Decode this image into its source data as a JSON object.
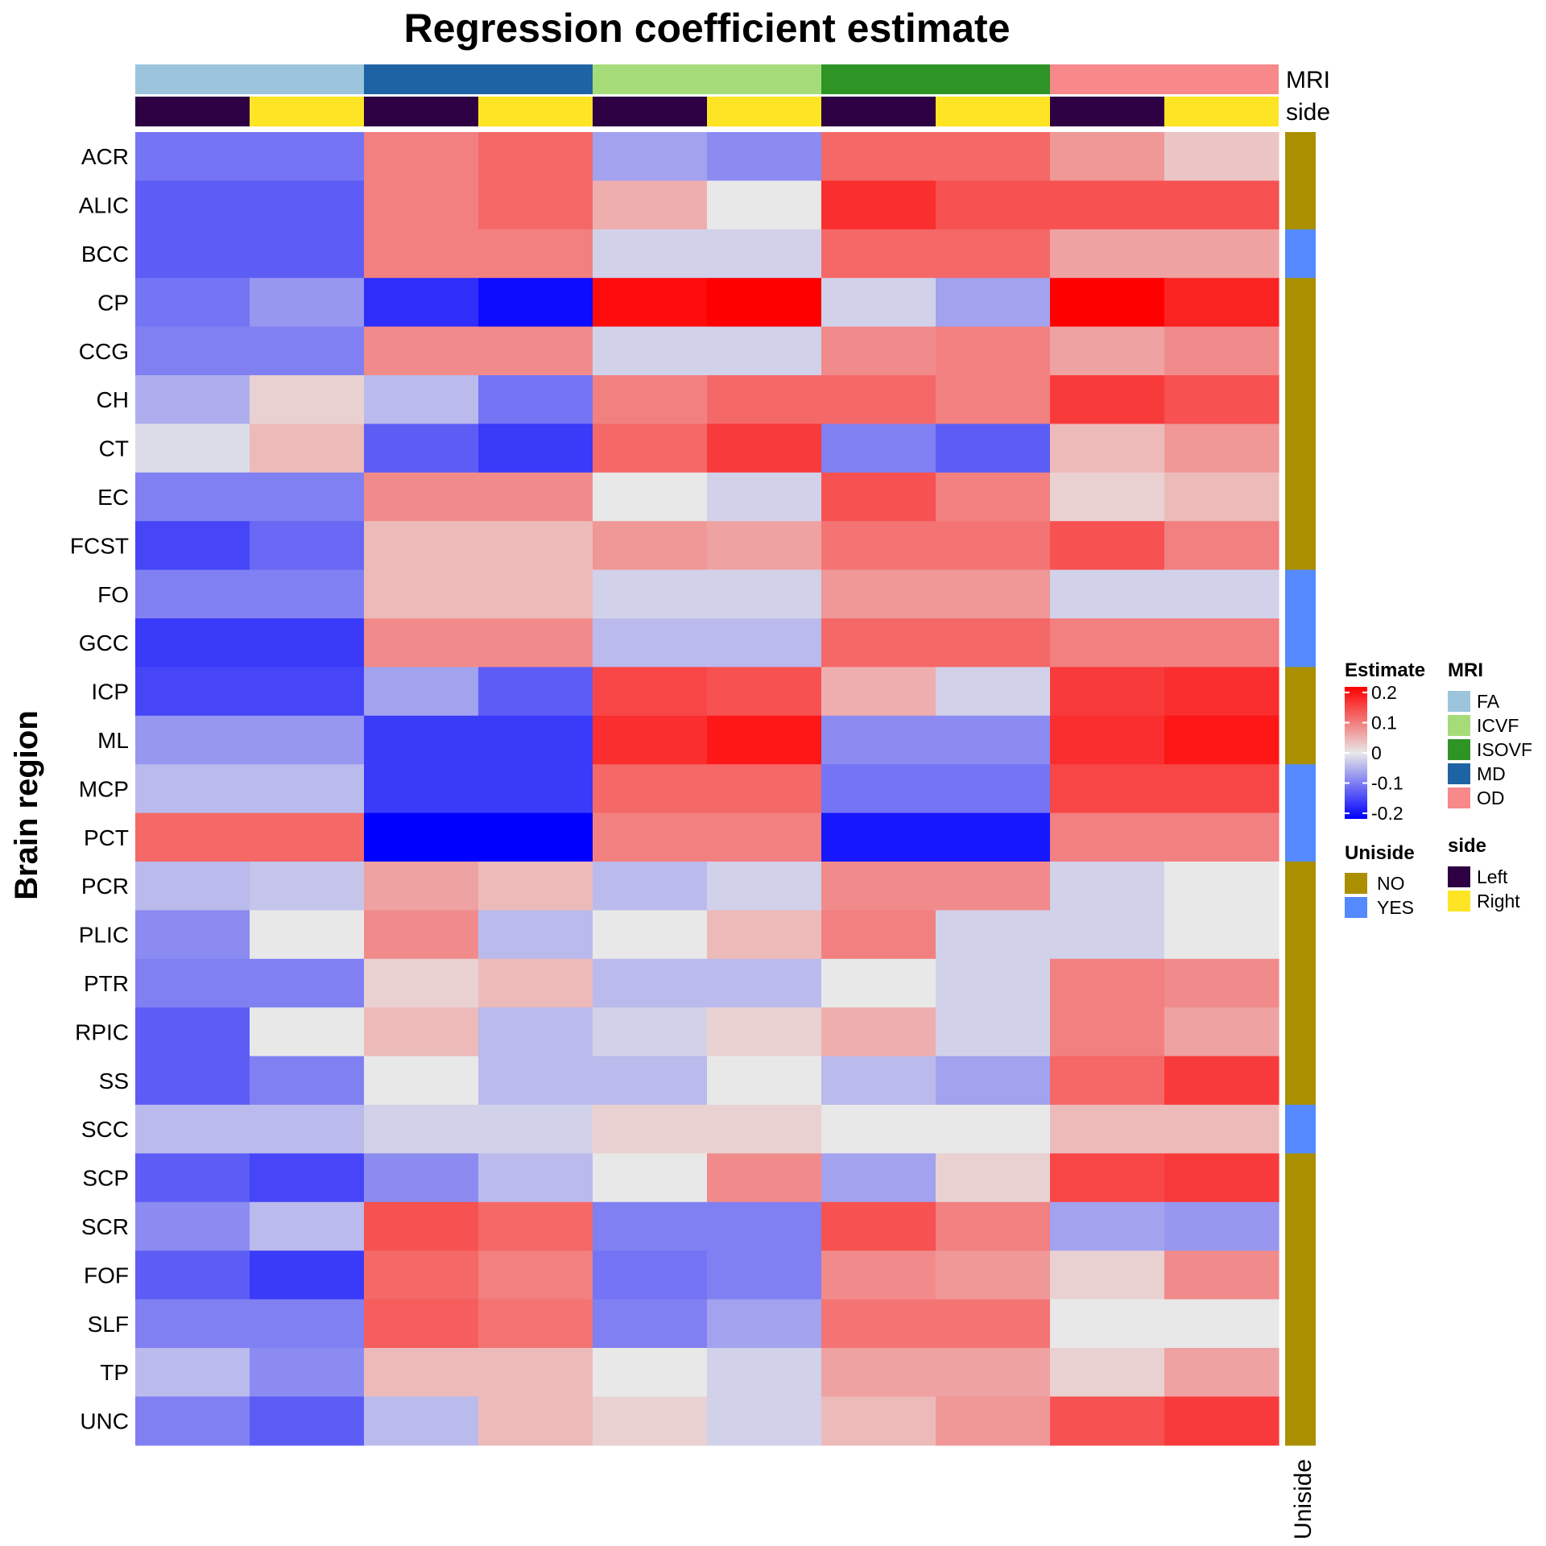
{
  "chart_data": {
    "type": "heatmap",
    "title": "Regression coefficient estimate",
    "ylabel": "Brain region",
    "rows": [
      "ACR",
      "ALIC",
      "BCC",
      "CP",
      "CCG",
      "CH",
      "CT",
      "EC",
      "FCST",
      "FO",
      "GCC",
      "ICP",
      "ML",
      "MCP",
      "PCT",
      "PCR",
      "PLIC",
      "PTR",
      "RPIC",
      "SS",
      "SCC",
      "SCP",
      "SCR",
      "FOF",
      "SLF",
      "TP",
      "UNC"
    ],
    "columns": [
      {
        "MRI": "FA",
        "side": "Left"
      },
      {
        "MRI": "FA",
        "side": "Right"
      },
      {
        "MRI": "MD",
        "side": "Left"
      },
      {
        "MRI": "MD",
        "side": "Right"
      },
      {
        "MRI": "ICVF",
        "side": "Left"
      },
      {
        "MRI": "ICVF",
        "side": "Right"
      },
      {
        "MRI": "ISOVF",
        "side": "Left"
      },
      {
        "MRI": "ISOVF",
        "side": "Right"
      },
      {
        "MRI": "OD",
        "side": "Left"
      },
      {
        "MRI": "OD",
        "side": "Right"
      }
    ],
    "values": [
      [
        -0.1,
        -0.1,
        0.09,
        0.11,
        -0.06,
        -0.08,
        0.11,
        0.11,
        0.07,
        0.03
      ],
      [
        -0.12,
        -0.12,
        0.09,
        0.11,
        0.05,
        0.0,
        0.16,
        0.13,
        0.13,
        0.13
      ],
      [
        -0.12,
        -0.12,
        0.09,
        0.09,
        -0.02,
        -0.02,
        0.11,
        0.11,
        0.06,
        0.06
      ],
      [
        -0.1,
        -0.07,
        -0.16,
        -0.19,
        0.19,
        0.2,
        -0.02,
        -0.06,
        0.2,
        0.17
      ],
      [
        -0.09,
        -0.09,
        0.08,
        0.08,
        -0.02,
        -0.02,
        0.08,
        0.09,
        0.06,
        0.08
      ],
      [
        -0.05,
        0.02,
        -0.04,
        -0.1,
        0.09,
        0.11,
        0.11,
        0.09,
        0.15,
        0.13
      ],
      [
        -0.01,
        0.04,
        -0.12,
        -0.15,
        0.11,
        0.15,
        -0.09,
        -0.12,
        0.04,
        0.07
      ],
      [
        -0.09,
        -0.09,
        0.08,
        0.08,
        0.0,
        -0.02,
        0.13,
        0.09,
        0.02,
        0.04
      ],
      [
        -0.14,
        -0.11,
        0.04,
        0.04,
        0.07,
        0.06,
        0.1,
        0.1,
        0.13,
        0.09
      ],
      [
        -0.09,
        -0.09,
        0.04,
        0.04,
        -0.02,
        -0.02,
        0.07,
        0.07,
        -0.02,
        -0.02
      ],
      [
        -0.15,
        -0.15,
        0.08,
        0.08,
        -0.04,
        -0.04,
        0.11,
        0.11,
        0.09,
        0.09
      ],
      [
        -0.14,
        -0.14,
        -0.06,
        -0.12,
        0.14,
        0.13,
        0.05,
        -0.02,
        0.15,
        0.16
      ],
      [
        -0.07,
        -0.07,
        -0.15,
        -0.15,
        0.16,
        0.18,
        -0.08,
        -0.08,
        0.16,
        0.18
      ],
      [
        -0.04,
        -0.04,
        -0.15,
        -0.15,
        0.11,
        0.11,
        -0.1,
        -0.1,
        0.14,
        0.14
      ],
      [
        0.11,
        0.11,
        -0.2,
        -0.2,
        0.09,
        0.09,
        -0.18,
        -0.18,
        0.09,
        0.09
      ],
      [
        -0.04,
        -0.03,
        0.06,
        0.04,
        -0.04,
        -0.02,
        0.08,
        0.08,
        -0.02,
        0.0
      ],
      [
        -0.08,
        0.0,
        0.08,
        -0.04,
        0.0,
        0.04,
        0.09,
        -0.02,
        -0.02,
        0.0
      ],
      [
        -0.09,
        -0.09,
        0.02,
        0.04,
        -0.04,
        -0.04,
        0.0,
        -0.02,
        0.09,
        0.08
      ],
      [
        -0.12,
        0.0,
        0.04,
        -0.04,
        -0.02,
        0.02,
        0.05,
        -0.02,
        0.09,
        0.06
      ],
      [
        -0.12,
        -0.09,
        0.0,
        -0.04,
        -0.04,
        0.0,
        -0.04,
        -0.06,
        0.11,
        0.15
      ],
      [
        -0.04,
        -0.04,
        -0.02,
        -0.02,
        0.02,
        0.02,
        0.0,
        0.0,
        0.04,
        0.04
      ],
      [
        -0.12,
        -0.14,
        -0.08,
        -0.04,
        0.0,
        0.08,
        -0.06,
        0.02,
        0.14,
        0.15
      ],
      [
        -0.08,
        -0.04,
        0.13,
        0.11,
        -0.09,
        -0.09,
        0.13,
        0.09,
        -0.06,
        -0.07
      ],
      [
        -0.12,
        -0.15,
        0.11,
        0.09,
        -0.1,
        -0.09,
        0.08,
        0.07,
        0.02,
        0.08
      ],
      [
        -0.09,
        -0.09,
        0.12,
        0.1,
        -0.09,
        -0.06,
        0.1,
        0.1,
        0.0,
        0.0
      ],
      [
        -0.04,
        -0.08,
        0.04,
        0.04,
        0.0,
        -0.02,
        0.06,
        0.06,
        0.02,
        0.06
      ],
      [
        -0.09,
        -0.12,
        -0.04,
        0.04,
        0.02,
        -0.02,
        0.04,
        0.07,
        0.13,
        0.15
      ]
    ],
    "uniside": [
      "NO",
      "NO",
      "YES",
      "NO",
      "NO",
      "NO",
      "NO",
      "NO",
      "NO",
      "YES",
      "YES",
      "NO",
      "NO",
      "YES",
      "YES",
      "NO",
      "NO",
      "NO",
      "NO",
      "NO",
      "YES",
      "NO",
      "NO",
      "NO",
      "NO",
      "NO",
      "NO"
    ],
    "annotation_names": {
      "MRI": "MRI",
      "side": "side",
      "uniside": "Uniside"
    },
    "mri_groups": [
      {
        "label": "FA",
        "color": "#9DC4DD"
      },
      {
        "label": "MD",
        "color": "#1E64A4"
      },
      {
        "label": "ICVF",
        "color": "#A6DB7A"
      },
      {
        "label": "ISOVF",
        "color": "#2E9426"
      },
      {
        "label": "OD",
        "color": "#F8898A"
      }
    ],
    "side_colors": {
      "Left": "#2C0042",
      "Right": "#FDE425"
    },
    "uniside_colors": {
      "NO": "#AA9000",
      "YES": "#5489FF"
    },
    "color_scale": {
      "stops": [
        {
          "value": -0.2,
          "color": "#0000FF"
        },
        {
          "value": 0,
          "color": "#E8E8E8"
        },
        {
          "value": 0.2,
          "color": "#FF0000"
        }
      ],
      "ticks": [
        "0.2",
        "0.1",
        "0",
        "-0.1",
        "-0.2"
      ]
    },
    "legends": {
      "estimate_title": "Estimate",
      "mri_title": "MRI",
      "mri_entries": [
        "FA",
        "ICVF",
        "ISOVF",
        "MD",
        "OD"
      ],
      "uniside_title": "Uniside",
      "uniside_entries": [
        "NO",
        "YES"
      ],
      "side_title": "side",
      "side_entries": [
        "Left",
        "Right"
      ]
    }
  }
}
